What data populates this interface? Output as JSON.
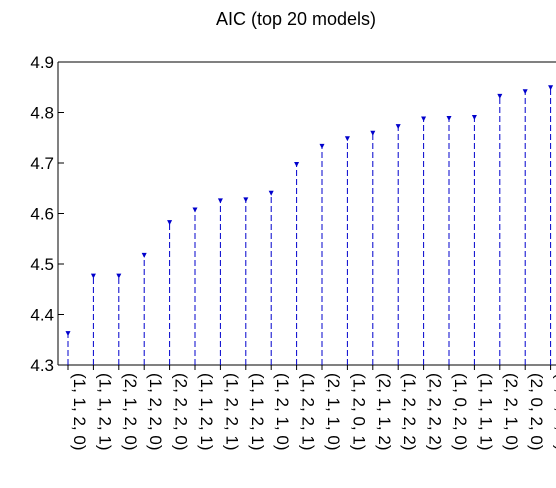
{
  "chart_data": {
    "type": "stem",
    "title": "AIC (top 20 models)",
    "xlabel": "",
    "ylabel": "",
    "ylim": [
      4.3,
      4.9
    ],
    "yticks": [
      "4.3",
      "4.4",
      "4.5",
      "4.6",
      "4.7",
      "4.8",
      "4.9"
    ],
    "grid": false,
    "legend": "none",
    "marker_color": "#0000cc",
    "categories": [
      "(1, 1, 2, 0)",
      "(1, 1, 2, 1)",
      "(2, 1, 2, 0)",
      "(1, 2, 2, 0)",
      "(2, 2, 2, 0)",
      "(1, 1, 2, 1)",
      "(1, 2, 2, 1)",
      "(1, 1, 2, 1)",
      "(1, 2, 1, 0)",
      "(1, 2, 2, 1)",
      "(2, 1, 1, 0)",
      "(1, 2, 0, 1)",
      "(2, 1, 1, 2)",
      "(1, 2, 2, 2)",
      "(2, 2, 2, 2)",
      "(1, 0, 2, 0)",
      "(1, 1, 1, 1)",
      "(2, 2, 1, 0)",
      "(2, 0, 2, 0)",
      "(2, 2, 2, 2)"
    ],
    "values": [
      4.363,
      4.477,
      4.477,
      4.518,
      4.583,
      4.608,
      4.626,
      4.628,
      4.641,
      4.698,
      4.734,
      4.749,
      4.76,
      4.773,
      4.788,
      4.789,
      4.791,
      4.833,
      4.842,
      4.85
    ]
  }
}
